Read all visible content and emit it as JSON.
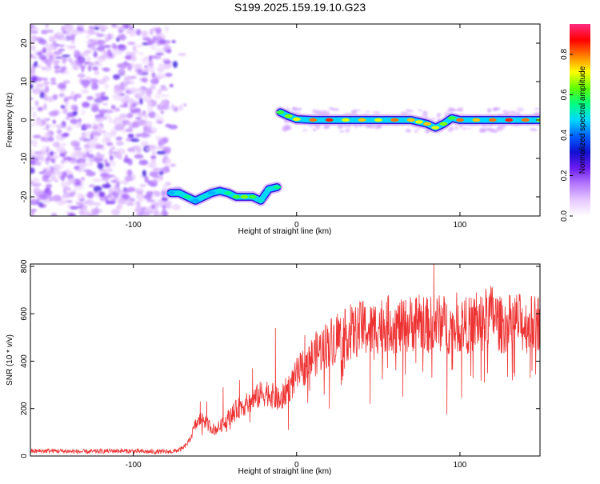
{
  "title": "S199.2025.159.19.10.G23",
  "chart_data": [
    {
      "type": "heatmap",
      "xlabel": "Height of straight line (km)",
      "ylabel": "Frequency (Hz)",
      "xlim": [
        -163,
        149
      ],
      "ylim": [
        -25,
        25
      ],
      "xticks": [
        -100,
        0,
        100
      ],
      "xtick_labels": [
        "-100",
        "0",
        "100"
      ],
      "yticks": [
        -20,
        -10,
        0,
        10,
        20
      ],
      "ytick_labels": [
        "-20",
        "-10",
        "0",
        "10",
        "20"
      ],
      "colorbar": {
        "label": "Normalized spectral amplitude",
        "range": [
          0,
          0.95
        ],
        "ticks": [
          0,
          0.2,
          0.4,
          0.6,
          0.8
        ],
        "tick_labels": [
          "0.0",
          "0.2",
          "0.4",
          "0.6",
          "0.8"
        ],
        "colors": [
          "#ffffff",
          "#e6c8ff",
          "#b478ff",
          "#6a1bf0",
          "#1010d0",
          "#0060ff",
          "#00d8ff",
          "#00ff80",
          "#60ff00",
          "#ffff00",
          "#ff8000",
          "#ff0000",
          "#ff2a80"
        ]
      },
      "noise_region": {
        "x_range": [
          -163,
          -75
        ],
        "y_range": [
          -25,
          25
        ],
        "typical_amplitude": 0.1
      },
      "ridge": {
        "x": [
          -77,
          -72,
          -67,
          -62,
          -57,
          -52,
          -47,
          -42,
          -37,
          -32,
          -27,
          -22,
          -17,
          -12,
          -10,
          -5,
          0,
          10,
          20,
          30,
          40,
          50,
          60,
          70,
          75,
          80,
          85,
          90,
          95,
          100,
          110,
          120,
          130,
          140,
          149
        ],
        "y": [
          -19,
          -19,
          -20,
          -21,
          -20,
          -19,
          -18.5,
          -19,
          -20,
          -20,
          -20,
          -21,
          -18,
          -17.5,
          2,
          1,
          0.2,
          0,
          0,
          0,
          0,
          0,
          0,
          0,
          -0.5,
          -1,
          -2,
          -1,
          0.5,
          0,
          0,
          0,
          0,
          0,
          0
        ],
        "amplitude": [
          0.45,
          0.5,
          0.55,
          0.45,
          0.5,
          0.45,
          0.5,
          0.55,
          0.6,
          0.65,
          0.6,
          0.5,
          0.5,
          0.55,
          0.6,
          0.65,
          0.7,
          0.8,
          0.85,
          0.7,
          0.75,
          0.7,
          0.8,
          0.75,
          0.7,
          0.75,
          0.7,
          0.65,
          0.6,
          0.8,
          0.75,
          0.8,
          0.85,
          0.8,
          0.7
        ]
      }
    },
    {
      "type": "line",
      "xlabel": "Height of straight line (km)",
      "ylabel": "SNR (10 * v/v)",
      "xlim": [
        -163,
        149
      ],
      "ylim": [
        0,
        810
      ],
      "xticks": [
        -100,
        0,
        100
      ],
      "xtick_labels": [
        "-100",
        "0",
        "100"
      ],
      "yticks": [
        0,
        200,
        400,
        600,
        800
      ],
      "ytick_labels": [
        "0",
        "200",
        "400",
        "600",
        "800"
      ],
      "series": [
        {
          "color": "#ee3333",
          "x": [
            -163,
            -150,
            -140,
            -130,
            -120,
            -110,
            -100,
            -90,
            -80,
            -75,
            -70,
            -66,
            -62,
            -58,
            -54,
            -50,
            -46,
            -42,
            -38,
            -34,
            -30,
            -26,
            -22,
            -18,
            -14,
            -10,
            -6,
            -2,
            0,
            5,
            10,
            15,
            20,
            25,
            30,
            35,
            40,
            45,
            50,
            55,
            60,
            65,
            70,
            75,
            80,
            85,
            90,
            95,
            100,
            105,
            110,
            115,
            120,
            125,
            130,
            135,
            140,
            145,
            149
          ],
          "values": [
            20,
            22,
            20,
            18,
            20,
            22,
            20,
            18,
            18,
            20,
            30,
            60,
            130,
            160,
            130,
            110,
            130,
            160,
            190,
            210,
            220,
            240,
            260,
            270,
            250,
            230,
            280,
            310,
            340,
            380,
            420,
            450,
            480,
            500,
            510,
            520,
            540,
            530,
            550,
            560,
            550,
            540,
            560,
            570,
            550,
            560,
            560,
            540,
            560,
            550,
            560,
            580,
            600,
            550,
            560,
            570,
            550,
            560,
            560
          ],
          "spikes": [
            {
              "x": -59,
              "value": 230
            },
            {
              "x": -55,
              "value": 230
            },
            {
              "x": -45,
              "value": 290
            },
            {
              "x": -35,
              "value": 320
            },
            {
              "x": -27,
              "value": 370
            },
            {
              "x": -13,
              "value": 540
            },
            {
              "x": 5,
              "value": 510
            },
            {
              "x": 25,
              "value": 600
            },
            {
              "x": 33,
              "value": 640
            },
            {
              "x": 40,
              "value": 650
            },
            {
              "x": 55,
              "value": 650
            },
            {
              "x": 75,
              "value": 680
            },
            {
              "x": 84,
              "value": 815
            },
            {
              "x": 98,
              "value": 690
            },
            {
              "x": 110,
              "value": 690
            },
            {
              "x": 135,
              "value": 650
            },
            {
              "x": 148,
              "value": 670
            }
          ],
          "dips": [
            {
              "x": -5,
              "value": 110
            },
            {
              "x": 20,
              "value": 200
            },
            {
              "x": 45,
              "value": 220
            },
            {
              "x": 65,
              "value": 250
            },
            {
              "x": 92,
              "value": 175
            },
            {
              "x": 101,
              "value": 245
            },
            {
              "x": 115,
              "value": 310
            },
            {
              "x": 133,
              "value": 350
            },
            {
              "x": 143,
              "value": 330
            }
          ]
        }
      ]
    }
  ]
}
